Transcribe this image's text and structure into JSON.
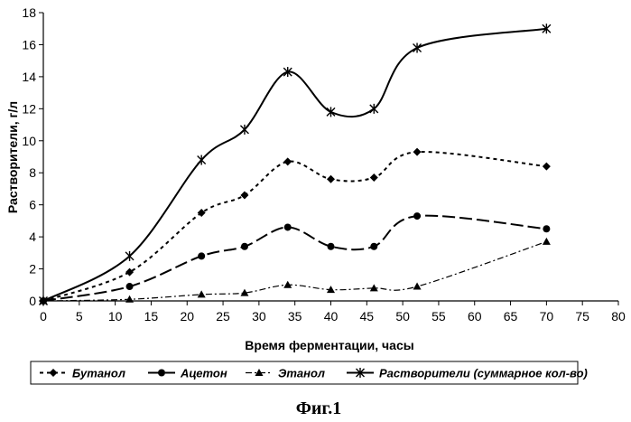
{
  "chart_data": {
    "type": "line",
    "xlabel": "Время ферментации, часы",
    "ylabel": "Растворители, г/л",
    "xlim": [
      0,
      80
    ],
    "ylim": [
      0,
      18
    ],
    "xticks": [
      0,
      5,
      10,
      15,
      20,
      25,
      30,
      35,
      40,
      45,
      50,
      55,
      60,
      65,
      70,
      75,
      80
    ],
    "yticks": [
      0,
      2,
      4,
      6,
      8,
      10,
      12,
      14,
      16,
      18
    ],
    "grid": false,
    "legend": "bottom",
    "series": [
      {
        "name": "Бутанол",
        "marker": "diamond",
        "dash": "short-dash",
        "x": [
          0,
          12,
          22,
          28,
          34,
          40,
          46,
          52,
          70
        ],
        "y": [
          0,
          1.8,
          5.5,
          6.6,
          8.7,
          7.6,
          7.7,
          9.3,
          8.4
        ]
      },
      {
        "name": "Ацетон",
        "marker": "circle",
        "dash": "long-dash",
        "x": [
          0,
          12,
          22,
          28,
          34,
          40,
          46,
          52,
          70
        ],
        "y": [
          0,
          0.9,
          2.8,
          3.4,
          4.6,
          3.4,
          3.4,
          5.3,
          4.5
        ]
      },
      {
        "name": "Этанол",
        "marker": "triangle",
        "dash": "dash-dot",
        "x": [
          0,
          12,
          22,
          28,
          34,
          40,
          46,
          52,
          70
        ],
        "y": [
          0,
          0.1,
          0.4,
          0.5,
          1.0,
          0.7,
          0.8,
          0.9,
          3.7
        ]
      },
      {
        "name": "Растворители (суммарное кол-во)",
        "marker": "asterisk",
        "dash": "solid",
        "x": [
          0,
          12,
          22,
          28,
          34,
          40,
          46,
          52,
          70
        ],
        "y": [
          0,
          2.8,
          8.8,
          10.7,
          14.3,
          11.8,
          12.0,
          15.8,
          17.0
        ]
      }
    ]
  },
  "caption": "Фиг.1",
  "colors": {
    "line": "#000000",
    "background": "#ffffff"
  }
}
